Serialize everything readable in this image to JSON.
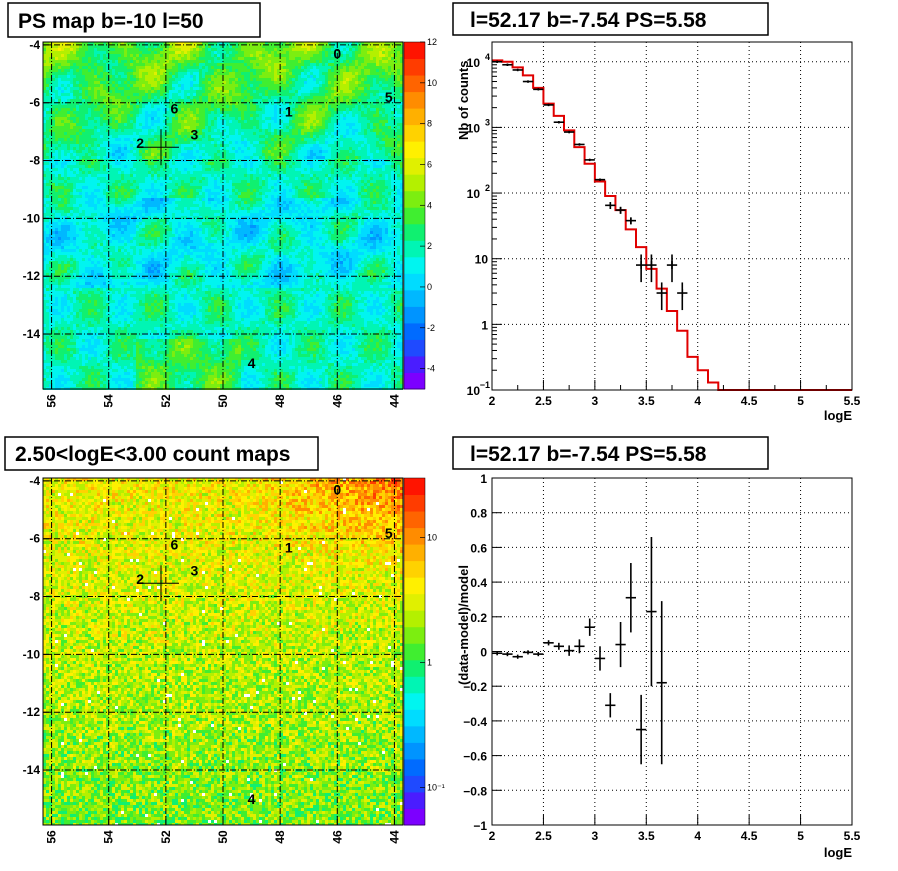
{
  "chart_data": [
    {
      "type": "heatmap",
      "title": "PS map b=-10 l=50",
      "x_ticks": [
        "56",
        "54",
        "52",
        "50",
        "48",
        "46",
        "44"
      ],
      "y_ticks": [
        "-4",
        "-6",
        "-8",
        "-10",
        "-12",
        "-14"
      ],
      "xlim": [
        56.3,
        43.7
      ],
      "ylim": [
        -15.9,
        -3.9
      ],
      "palette_ticks": [
        "12",
        "10",
        "8",
        "6",
        "4",
        "2",
        "0",
        "-2",
        "-4"
      ],
      "palette_range": [
        -5,
        12
      ],
      "sources": [
        {
          "label": "0",
          "l": 46.0,
          "b": -4.3
        },
        {
          "label": "1",
          "l": 47.7,
          "b": -6.3
        },
        {
          "label": "2",
          "l": 52.9,
          "b": -7.4
        },
        {
          "label": "3",
          "l": 51.0,
          "b": -7.1
        },
        {
          "label": "4",
          "l": 49.0,
          "b": -15.0
        },
        {
          "label": "5",
          "l": 44.2,
          "b": -5.8
        },
        {
          "label": "6",
          "l": 51.7,
          "b": -6.2
        }
      ],
      "marker": {
        "l": 52.17,
        "b": -7.54
      }
    },
    {
      "type": "line",
      "title": "l=52.17 b=-7.54 PS=5.58",
      "xlabel": "logE",
      "ylabel": "Nb of counts",
      "xlim": [
        2,
        5.5
      ],
      "ylim": [
        0.1,
        20000
      ],
      "y_log": true,
      "x_ticks": [
        "2",
        "2.5",
        "3",
        "3.5",
        "4",
        "4.5",
        "5",
        "5.5"
      ],
      "y_ticks": [
        {
          "v": 10000,
          "base": "10",
          "exp": "4"
        },
        {
          "v": 1000,
          "base": "10",
          "exp": "3"
        },
        {
          "v": 100,
          "base": "10",
          "exp": "2"
        },
        {
          "v": 10,
          "base": "10",
          "exp": ""
        },
        {
          "v": 1,
          "base": "1",
          "exp": ""
        },
        {
          "v": 0.1,
          "base": "10",
          "exp": "−1"
        }
      ],
      "data_points": [
        {
          "x": 2.05,
          "y": 10000
        },
        {
          "x": 2.15,
          "y": 9000
        },
        {
          "x": 2.25,
          "y": 7500
        },
        {
          "x": 2.35,
          "y": 5000
        },
        {
          "x": 2.45,
          "y": 3800
        },
        {
          "x": 2.55,
          "y": 2200
        },
        {
          "x": 2.65,
          "y": 1200
        },
        {
          "x": 2.75,
          "y": 850
        },
        {
          "x": 2.85,
          "y": 550
        },
        {
          "x": 2.95,
          "y": 320
        },
        {
          "x": 3.05,
          "y": 160
        },
        {
          "x": 3.15,
          "y": 65
        },
        {
          "x": 3.25,
          "y": 55
        },
        {
          "x": 3.35,
          "y": 38
        },
        {
          "x": 3.45,
          "y": 8
        },
        {
          "x": 3.55,
          "y": 8
        },
        {
          "x": 3.65,
          "y": 3
        },
        {
          "x": 3.75,
          "y": 8
        },
        {
          "x": 3.85,
          "y": 3
        }
      ],
      "model_steps": [
        {
          "x0": 2.0,
          "y": 10500
        },
        {
          "x0": 2.1,
          "y": 10000
        },
        {
          "x0": 2.2,
          "y": 8200
        },
        {
          "x0": 2.3,
          "y": 6200
        },
        {
          "x0": 2.4,
          "y": 4000
        },
        {
          "x0": 2.5,
          "y": 2300
        },
        {
          "x0": 2.6,
          "y": 1500
        },
        {
          "x0": 2.7,
          "y": 900
        },
        {
          "x0": 2.8,
          "y": 500
        },
        {
          "x0": 2.9,
          "y": 280
        },
        {
          "x0": 3.0,
          "y": 150
        },
        {
          "x0": 3.1,
          "y": 90
        },
        {
          "x0": 3.2,
          "y": 55
        },
        {
          "x0": 3.3,
          "y": 28
        },
        {
          "x0": 3.4,
          "y": 15
        },
        {
          "x0": 3.5,
          "y": 7
        },
        {
          "x0": 3.6,
          "y": 3.5
        },
        {
          "x0": 3.7,
          "y": 1.6
        },
        {
          "x0": 3.8,
          "y": 0.8
        },
        {
          "x0": 3.9,
          "y": 0.32
        },
        {
          "x0": 4.0,
          "y": 0.2
        },
        {
          "x0": 4.1,
          "y": 0.13
        },
        {
          "x0": 4.2,
          "y": 0.1
        },
        {
          "x0": 5.5,
          "y": 0.1
        }
      ]
    },
    {
      "type": "heatmap",
      "title": "2.50<logE<3.00 count maps",
      "x_ticks": [
        "56",
        "54",
        "52",
        "50",
        "48",
        "46",
        "44"
      ],
      "y_ticks": [
        "-4",
        "-6",
        "-8",
        "-10",
        "-12",
        "-14"
      ],
      "xlim": [
        56.3,
        43.7
      ],
      "ylim": [
        -15.9,
        -3.9
      ],
      "palette_ticks": [
        {
          "v": 10,
          "t": "10"
        },
        {
          "v": 1,
          "t": "1"
        },
        {
          "v": 0.1,
          "t": "10⁻¹"
        }
      ],
      "palette_log": true,
      "sources": [
        {
          "label": "0",
          "l": 46.0,
          "b": -4.3
        },
        {
          "label": "1",
          "l": 47.7,
          "b": -6.3
        },
        {
          "label": "2",
          "l": 52.9,
          "b": -7.4
        },
        {
          "label": "3",
          "l": 51.0,
          "b": -7.1
        },
        {
          "label": "4",
          "l": 49.0,
          "b": -15.0
        },
        {
          "label": "5",
          "l": 44.2,
          "b": -5.8
        },
        {
          "label": "6",
          "l": 51.7,
          "b": -6.2
        }
      ],
      "marker": {
        "l": 52.17,
        "b": -7.54
      }
    },
    {
      "type": "scatter",
      "title": "l=52.17 b=-7.54 PS=5.58",
      "xlabel": "logE",
      "ylabel": "(data-model)/model",
      "xlim": [
        2,
        5.5
      ],
      "ylim": [
        -1,
        1
      ],
      "x_ticks": [
        "2",
        "2.5",
        "3",
        "3.5",
        "4",
        "4.5",
        "5",
        "5.5"
      ],
      "y_ticks": [
        "1",
        "0.8",
        "0.6",
        "0.4",
        "0.2",
        "0",
        "−0.2",
        "−0.4",
        "−0.6",
        "−0.8",
        "−1"
      ],
      "points": [
        {
          "x": 2.05,
          "y": -0.01,
          "e": 0.005
        },
        {
          "x": 2.15,
          "y": -0.015,
          "e": 0.005
        },
        {
          "x": 2.25,
          "y": -0.03,
          "e": 0.008
        },
        {
          "x": 2.35,
          "y": -0.005,
          "e": 0.01
        },
        {
          "x": 2.45,
          "y": -0.015,
          "e": 0.012
        },
        {
          "x": 2.55,
          "y": 0.05,
          "e": 0.015
        },
        {
          "x": 2.65,
          "y": 0.03,
          "e": 0.02
        },
        {
          "x": 2.75,
          "y": 0.005,
          "e": 0.03
        },
        {
          "x": 2.85,
          "y": 0.03,
          "e": 0.04
        },
        {
          "x": 2.95,
          "y": 0.14,
          "e": 0.05
        },
        {
          "x": 3.05,
          "y": -0.04,
          "e": 0.07
        },
        {
          "x": 3.15,
          "y": -0.31,
          "e": 0.07
        },
        {
          "x": 3.25,
          "y": 0.04,
          "e": 0.13
        },
        {
          "x": 3.35,
          "y": 0.31,
          "e": 0.2
        },
        {
          "x": 3.45,
          "y": -0.45,
          "e": 0.2
        },
        {
          "x": 3.55,
          "y": 0.23,
          "e": 0.43
        },
        {
          "x": 3.65,
          "y": -0.18,
          "e": 0.47
        }
      ]
    }
  ]
}
